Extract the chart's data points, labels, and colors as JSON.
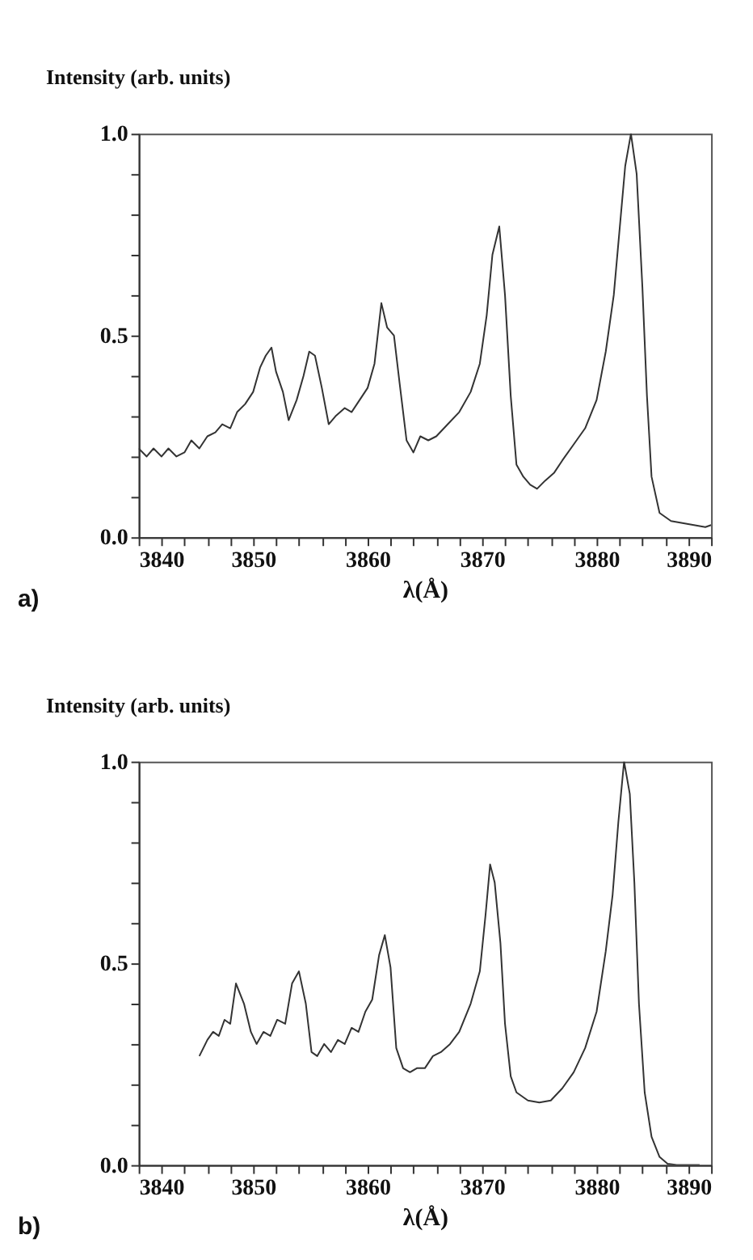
{
  "chart_data": [
    {
      "type": "line",
      "ylabel": "Intensity (arb. units)",
      "xlabel": "λ(Å)",
      "annotations": [
        "a)"
      ],
      "grid": false,
      "marker": "none",
      "line_style": "solid",
      "xlim": [
        3840,
        3890
      ],
      "ylim": [
        0,
        1.0
      ],
      "xticks": [
        3840,
        {
          "value": 3842,
          "label": null
        },
        {
          "value": 3844,
          "label": null
        },
        {
          "value": 3846,
          "label": null
        },
        {
          "value": 3848,
          "label": null
        },
        3850,
        {
          "value": 3852,
          "label": null
        },
        {
          "value": 3854,
          "label": null
        },
        {
          "value": 3856,
          "label": null
        },
        {
          "value": 3858,
          "label": null
        },
        3860,
        {
          "value": 3862,
          "label": null
        },
        {
          "value": 3864,
          "label": null
        },
        {
          "value": 3866,
          "label": null
        },
        {
          "value": 3868,
          "label": null
        },
        3870,
        {
          "value": 3872,
          "label": null
        },
        {
          "value": 3874,
          "label": null
        },
        {
          "value": 3876,
          "label": null
        },
        {
          "value": 3878,
          "label": null
        },
        3880,
        {
          "value": 3882,
          "label": null
        },
        {
          "value": 3884,
          "label": null
        },
        {
          "value": 3886,
          "label": null
        },
        {
          "value": 3888,
          "label": null
        },
        3890
      ],
      "yticks": [
        {
          "value": 0,
          "label": "0.0"
        },
        {
          "value": 0.1,
          "label": null
        },
        {
          "value": 0.2,
          "label": null
        },
        {
          "value": 0.3,
          "label": null
        },
        {
          "value": 0.4,
          "label": null
        },
        0.5,
        {
          "value": 0.6,
          "label": null
        },
        {
          "value": 0.7,
          "label": null
        },
        {
          "value": 0.8,
          "label": null
        },
        {
          "value": 0.9,
          "label": null
        },
        {
          "value": 1,
          "label": "1.0"
        }
      ],
      "series": [
        {
          "color": "#333333",
          "x": [
            3840,
            3840.7,
            3841.3,
            3842,
            3842.6,
            3843.3,
            3844,
            3844.6,
            3845.3,
            3846,
            3846.7,
            3847.3,
            3848,
            3848.6,
            3849.3,
            3850,
            3850.6,
            3851.1,
            3851.6,
            3852,
            3852.6,
            3853.1,
            3853.8,
            3854.4,
            3854.9,
            3855.4,
            3856,
            3856.6,
            3857.2,
            3858,
            3858.6,
            3859.3,
            3860,
            3860.6,
            3861.2,
            3861.7,
            3862.3,
            3862.8,
            3863.4,
            3864,
            3864.6,
            3865.3,
            3866,
            3867,
            3868,
            3869,
            3869.8,
            3870.4,
            3870.9,
            3871.5,
            3872,
            3872.5,
            3873,
            3873.6,
            3874.2,
            3874.8,
            3875.5,
            3876.3,
            3877,
            3878,
            3879,
            3880,
            3880.8,
            3881.5,
            3882,
            3882.5,
            3883,
            3883.5,
            3884,
            3884.4,
            3884.8,
            3885.5,
            3886.5,
            3887.5,
            3888.5,
            3889.5,
            3890
          ],
          "values": [
            0.22,
            0.2,
            0.22,
            0.2,
            0.22,
            0.2,
            0.21,
            0.24,
            0.22,
            0.25,
            0.26,
            0.28,
            0.27,
            0.31,
            0.33,
            0.36,
            0.42,
            0.45,
            0.47,
            0.41,
            0.36,
            0.29,
            0.34,
            0.4,
            0.46,
            0.45,
            0.37,
            0.28,
            0.3,
            0.32,
            0.31,
            0.34,
            0.37,
            0.43,
            0.58,
            0.52,
            0.5,
            0.38,
            0.24,
            0.21,
            0.25,
            0.24,
            0.25,
            0.28,
            0.31,
            0.36,
            0.43,
            0.55,
            0.7,
            0.77,
            0.6,
            0.35,
            0.18,
            0.15,
            0.13,
            0.12,
            0.14,
            0.16,
            0.19,
            0.23,
            0.27,
            0.34,
            0.46,
            0.6,
            0.76,
            0.92,
            1.0,
            0.9,
            0.62,
            0.35,
            0.15,
            0.06,
            0.04,
            0.035,
            0.03,
            0.025,
            0.03
          ]
        }
      ]
    },
    {
      "type": "line",
      "ylabel": "Intensity (arb. units)",
      "xlabel": "λ(Å)",
      "annotations": [
        "b)"
      ],
      "grid": false,
      "marker": "none",
      "line_style": "solid",
      "xlim": [
        3840,
        3890
      ],
      "ylim": [
        0,
        1.0
      ],
      "xticks": [
        3840,
        {
          "value": 3842,
          "label": null
        },
        {
          "value": 3844,
          "label": null
        },
        {
          "value": 3846,
          "label": null
        },
        {
          "value": 3848,
          "label": null
        },
        3850,
        {
          "value": 3852,
          "label": null
        },
        {
          "value": 3854,
          "label": null
        },
        {
          "value": 3856,
          "label": null
        },
        {
          "value": 3858,
          "label": null
        },
        3860,
        {
          "value": 3862,
          "label": null
        },
        {
          "value": 3864,
          "label": null
        },
        {
          "value": 3866,
          "label": null
        },
        {
          "value": 3868,
          "label": null
        },
        3870,
        {
          "value": 3872,
          "label": null
        },
        {
          "value": 3874,
          "label": null
        },
        {
          "value": 3876,
          "label": null
        },
        {
          "value": 3878,
          "label": null
        },
        3880,
        {
          "value": 3882,
          "label": null
        },
        {
          "value": 3884,
          "label": null
        },
        {
          "value": 3886,
          "label": null
        },
        {
          "value": 3888,
          "label": null
        },
        3890
      ],
      "yticks": [
        {
          "value": 0,
          "label": "0.0"
        },
        {
          "value": 0.1,
          "label": null
        },
        {
          "value": 0.2,
          "label": null
        },
        {
          "value": 0.3,
          "label": null
        },
        {
          "value": 0.4,
          "label": null
        },
        0.5,
        {
          "value": 0.6,
          "label": null
        },
        {
          "value": 0.7,
          "label": null
        },
        {
          "value": 0.8,
          "label": null
        },
        {
          "value": 0.9,
          "label": null
        },
        {
          "value": 1,
          "label": "1.0"
        }
      ],
      "series": [
        {
          "color": "#333333",
          "x": [
            3845.3,
            3846,
            3846.5,
            3847,
            3847.5,
            3848,
            3848.5,
            3849.2,
            3849.8,
            3850.3,
            3850.9,
            3851.5,
            3852.1,
            3852.8,
            3853.4,
            3854,
            3854.6,
            3855.1,
            3855.6,
            3856.2,
            3856.8,
            3857.4,
            3858,
            3858.6,
            3859.2,
            3859.8,
            3860.4,
            3861,
            3861.5,
            3862,
            3862.5,
            3863.1,
            3863.7,
            3864.3,
            3865,
            3865.7,
            3866.4,
            3867.2,
            3868,
            3869,
            3869.8,
            3870.3,
            3870.7,
            3871.1,
            3871.6,
            3872,
            3872.5,
            3873,
            3874,
            3875,
            3876,
            3877,
            3878,
            3879,
            3880,
            3880.8,
            3881.4,
            3881.9,
            3882.4,
            3882.9,
            3883.3,
            3883.7,
            3884.2,
            3884.8,
            3885.5,
            3886.2,
            3887,
            3888,
            3889
          ],
          "values": [
            0.27,
            0.31,
            0.33,
            0.32,
            0.36,
            0.35,
            0.45,
            0.4,
            0.33,
            0.3,
            0.33,
            0.32,
            0.36,
            0.35,
            0.45,
            0.48,
            0.4,
            0.28,
            0.27,
            0.3,
            0.28,
            0.31,
            0.3,
            0.34,
            0.33,
            0.38,
            0.41,
            0.52,
            0.57,
            0.49,
            0.29,
            0.24,
            0.23,
            0.24,
            0.24,
            0.27,
            0.28,
            0.3,
            0.33,
            0.4,
            0.48,
            0.62,
            0.745,
            0.7,
            0.55,
            0.35,
            0.22,
            0.18,
            0.16,
            0.155,
            0.16,
            0.19,
            0.23,
            0.29,
            0.38,
            0.53,
            0.67,
            0.85,
            1.0,
            0.92,
            0.7,
            0.4,
            0.18,
            0.07,
            0.02,
            0.003,
            0.0,
            0.0,
            0.0
          ]
        }
      ]
    }
  ]
}
